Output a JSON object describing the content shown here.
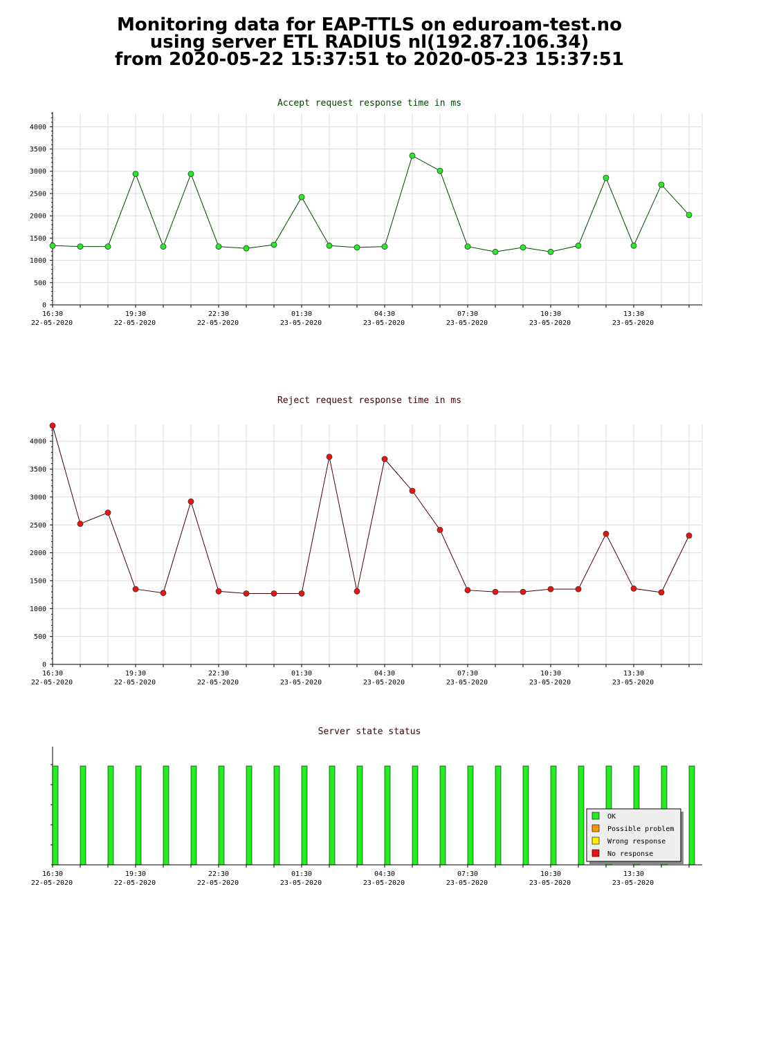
{
  "header": {
    "line1": "Monitoring data for EAP-TTLS on eduroam-test.no",
    "line2": "using server ETL RADIUS nl(192.87.106.34)",
    "line3": "from 2020-05-22 15:37:51 to 2020-05-23 15:37:51"
  },
  "colors": {
    "accept_line": "#004400",
    "accept_marker": "#22ee22",
    "reject_line": "#440000",
    "reject_marker": "#ee1111",
    "status_ok": "#22ee22",
    "status_possible_problem": "#ff9900",
    "status_wrong_response": "#ffee00",
    "status_no_response": "#ee1111"
  },
  "x_axis": {
    "ticks": [
      {
        "time": "16:30",
        "date": "22-05-2020"
      },
      {
        "time": "19:30",
        "date": "22-05-2020"
      },
      {
        "time": "22:30",
        "date": "22-05-2020"
      },
      {
        "time": "01:30",
        "date": "23-05-2020"
      },
      {
        "time": "04:30",
        "date": "23-05-2020"
      },
      {
        "time": "07:30",
        "date": "23-05-2020"
      },
      {
        "time": "10:30",
        "date": "23-05-2020"
      },
      {
        "time": "13:30",
        "date": "23-05-2020"
      }
    ]
  },
  "chart_data": [
    {
      "type": "line",
      "title": "Accept request response time in ms",
      "xlabel": "",
      "ylabel": "",
      "ylim": [
        0,
        4300
      ],
      "yticks": [
        0,
        500,
        1000,
        1500,
        2000,
        2500,
        3000,
        3500,
        4000
      ],
      "x": [
        "16:30",
        "17:30",
        "18:30",
        "19:30",
        "20:30",
        "21:30",
        "22:30",
        "23:30",
        "00:30",
        "01:30",
        "02:30",
        "03:30",
        "04:30",
        "05:30",
        "06:30",
        "07:30",
        "08:30",
        "09:30",
        "10:30",
        "11:30",
        "12:30",
        "13:30",
        "14:30",
        "15:30"
      ],
      "series": [
        {
          "values": [
            1330,
            1310,
            1310,
            2940,
            1310,
            2940,
            1310,
            1270,
            1350,
            2420,
            1330,
            1290,
            1310,
            3350,
            3010,
            1310,
            1190,
            1290,
            1190,
            1330,
            2850,
            1330,
            2700,
            2020
          ]
        }
      ],
      "grid": true
    },
    {
      "type": "line",
      "title": "Reject request response time in ms",
      "xlabel": "",
      "ylabel": "",
      "ylim": [
        0,
        4300
      ],
      "yticks": [
        0,
        500,
        1000,
        1500,
        2000,
        2500,
        3000,
        3500,
        4000
      ],
      "x": [
        "16:30",
        "17:30",
        "18:30",
        "19:30",
        "20:30",
        "21:30",
        "22:30",
        "23:30",
        "00:30",
        "01:30",
        "02:30",
        "03:30",
        "04:30",
        "05:30",
        "06:30",
        "07:30",
        "08:30",
        "09:30",
        "10:30",
        "11:30",
        "12:30",
        "13:30",
        "14:30",
        "15:30"
      ],
      "series": [
        {
          "values": [
            4280,
            2520,
            2720,
            1350,
            1280,
            2920,
            1310,
            1270,
            1270,
            1270,
            3720,
            1310,
            3680,
            3110,
            2410,
            1330,
            1300,
            1300,
            1350,
            1350,
            2340,
            1360,
            1290,
            2310
          ]
        }
      ],
      "grid": true
    },
    {
      "type": "bar",
      "title": "Server state status",
      "xlabel": "",
      "ylabel": "",
      "x": [
        "16:30",
        "17:30",
        "18:30",
        "19:30",
        "20:30",
        "21:30",
        "22:30",
        "23:30",
        "00:30",
        "01:30",
        "02:30",
        "03:30",
        "04:30",
        "05:30",
        "06:30",
        "07:30",
        "08:30",
        "09:30",
        "10:30",
        "11:30",
        "12:30",
        "13:30",
        "14:30",
        "15:30"
      ],
      "states": [
        "OK",
        "OK",
        "OK",
        "OK",
        "OK",
        "OK",
        "OK",
        "OK",
        "OK",
        "OK",
        "OK",
        "OK",
        "OK",
        "OK",
        "OK",
        "OK",
        "OK",
        "OK",
        "OK",
        "OK",
        "OK",
        "OK",
        "OK",
        "OK"
      ],
      "legend": [
        {
          "label": "OK",
          "color": "#22ee22"
        },
        {
          "label": "Possible problem",
          "color": "#ff9900"
        },
        {
          "label": "Wrong response",
          "color": "#ffee00"
        },
        {
          "label": "No response",
          "color": "#ee1111"
        }
      ],
      "legend_position": "bottom-right"
    }
  ]
}
